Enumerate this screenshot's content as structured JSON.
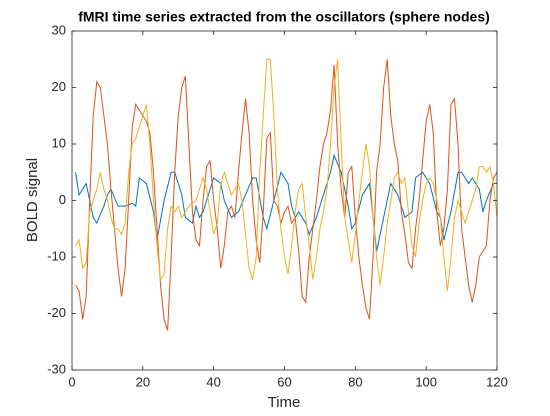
{
  "chart_data": {
    "type": "line",
    "title": "fMRI time series extracted from the oscillators (sphere nodes)",
    "xlabel": "Time",
    "ylabel": "BOLD signal",
    "xlim": [
      0,
      120
    ],
    "xticks": [
      0,
      20,
      40,
      60,
      80,
      100,
      120
    ],
    "ylim": [
      -30,
      30
    ],
    "yticks": [
      -30,
      -20,
      -10,
      0,
      10,
      20,
      30
    ],
    "grid": false,
    "series": [
      {
        "color": "#0072bd",
        "x": [
          1,
          2,
          4,
          6,
          7,
          9,
          10,
          11,
          13,
          15,
          17,
          18,
          19,
          21,
          23,
          24,
          26,
          28,
          29,
          31,
          32,
          34,
          35,
          36,
          37,
          38,
          40,
          42,
          43,
          45,
          47,
          49,
          51,
          52,
          54,
          55,
          57,
          59,
          61,
          62,
          63,
          64,
          66,
          67,
          69,
          71,
          73,
          74,
          76,
          78,
          79,
          80,
          82,
          84,
          85,
          86,
          88,
          90,
          92,
          94,
          96,
          97,
          99,
          101,
          103,
          104,
          105,
          107,
          109,
          110,
          112,
          113,
          115,
          116,
          117,
          119,
          120
        ],
        "values": [
          5,
          1,
          3,
          -3,
          -4,
          -1,
          1,
          2,
          -1,
          -1,
          -0.5,
          -1,
          4,
          3,
          -2,
          -7,
          0,
          5,
          5,
          1,
          -3,
          -4,
          -1,
          -3,
          -2,
          0,
          4,
          3,
          0,
          -3,
          -2,
          1,
          4,
          4,
          -3,
          -5,
          0,
          5,
          3,
          -1,
          -3,
          -2,
          -4,
          -6,
          -3,
          1,
          5,
          8,
          5,
          -1,
          -5,
          -4,
          1,
          3,
          -3,
          -9,
          -3,
          3,
          1,
          -3,
          -2,
          4,
          5,
          3,
          -2,
          -3,
          -7,
          -2,
          5,
          5,
          3,
          4,
          2,
          -2,
          0,
          3,
          3
        ]
      },
      {
        "color": "#d95319",
        "x": [
          1,
          2,
          3,
          4,
          5,
          6,
          7,
          8,
          9,
          10,
          11,
          12,
          13,
          14,
          15,
          16,
          17,
          18,
          19,
          20,
          21,
          22,
          23,
          24,
          25,
          26,
          27,
          28,
          29,
          30,
          31,
          32,
          33,
          34,
          35,
          36,
          37,
          38,
          39,
          40,
          41,
          42,
          43,
          44,
          45,
          46,
          47,
          48,
          49,
          50,
          51,
          52,
          53,
          54,
          55,
          56,
          57,
          58,
          59,
          60,
          61,
          62,
          63,
          64,
          65,
          66,
          67,
          68,
          69,
          70,
          71,
          72,
          73,
          74,
          75,
          76,
          77,
          78,
          79,
          80,
          81,
          82,
          83,
          84,
          85,
          86,
          87,
          88,
          89,
          90,
          91,
          92,
          93,
          94,
          95,
          96,
          97,
          98,
          99,
          100,
          101,
          102,
          103,
          104,
          105,
          106,
          107,
          108,
          109,
          110,
          111,
          112,
          113,
          114,
          115,
          116,
          117,
          118,
          119,
          120
        ],
        "values": [
          -15,
          -16,
          -21,
          -17,
          0,
          15,
          21,
          20,
          15,
          10,
          2,
          -5,
          -12,
          -17,
          -12,
          0,
          13,
          17,
          16,
          15,
          14,
          12,
          5,
          -5,
          -15,
          -21,
          -23,
          -10,
          5,
          15,
          20,
          22,
          10,
          -2,
          -7,
          -8,
          0,
          6,
          7,
          0,
          -5,
          -12,
          -8,
          -2,
          -1,
          -3,
          5,
          12,
          18,
          12,
          0,
          -7,
          -11,
          -2,
          11,
          12,
          0,
          -1,
          -4,
          -2,
          -1,
          -4,
          -3,
          -9,
          -17,
          -18,
          -10,
          -5,
          0,
          6,
          10,
          12,
          16,
          24,
          10,
          2,
          -3,
          5,
          6,
          -3,
          -10,
          -15,
          -19,
          -21,
          -10,
          5,
          10,
          20,
          25,
          15,
          10,
          7,
          -2,
          -6,
          -11,
          -12,
          -5,
          0,
          7,
          14,
          17,
          12,
          -2,
          -8,
          -5,
          2,
          17,
          18,
          10,
          -5,
          -10,
          -15,
          -18,
          -15,
          -10,
          -9,
          -8,
          0,
          4,
          5
        ]
      },
      {
        "color": "#edb120",
        "x": [
          1,
          2,
          3,
          4,
          5,
          6,
          7,
          8,
          9,
          10,
          11,
          12,
          13,
          14,
          15,
          16,
          17,
          18,
          19,
          20,
          21,
          22,
          23,
          24,
          25,
          26,
          27,
          28,
          29,
          30,
          31,
          32,
          33,
          34,
          35,
          36,
          37,
          38,
          39,
          40,
          41,
          42,
          43,
          44,
          45,
          46,
          47,
          48,
          49,
          50,
          51,
          52,
          53,
          54,
          55,
          56,
          57,
          58,
          59,
          60,
          61,
          62,
          63,
          64,
          65,
          66,
          67,
          68,
          69,
          70,
          71,
          72,
          73,
          74,
          75,
          76,
          77,
          78,
          79,
          80,
          81,
          82,
          83,
          84,
          85,
          86,
          87,
          88,
          89,
          90,
          91,
          92,
          93,
          94,
          95,
          96,
          97,
          98,
          99,
          100,
          101,
          102,
          103,
          104,
          105,
          106,
          107,
          108,
          109,
          110,
          111,
          112,
          113,
          114,
          115,
          116,
          117,
          118,
          119,
          120
        ],
        "values": [
          -8,
          -7,
          -12,
          -11,
          -2,
          0,
          2,
          5,
          2,
          0,
          -3,
          -5,
          -5,
          -6,
          -4,
          5,
          10,
          11,
          13,
          15,
          17,
          10,
          0,
          -8,
          -14,
          -13,
          -5,
          -1,
          -2,
          -1,
          -3,
          -2,
          -1,
          -0.5,
          0,
          2,
          4,
          2,
          -2,
          -6,
          -4,
          3,
          5,
          3,
          1,
          2,
          3,
          0,
          -6,
          -12,
          -14,
          -10,
          5,
          15,
          25,
          25,
          15,
          2,
          -5,
          -10,
          -13,
          -8,
          -2,
          2,
          3,
          -3,
          -8,
          -14,
          -10,
          -5,
          -2,
          2,
          10,
          20,
          25,
          10,
          -3,
          -7,
          -11,
          -6,
          0,
          5,
          10,
          6,
          -3,
          -10,
          -15,
          -10,
          -4,
          0,
          4,
          5,
          3,
          4,
          -2,
          -8,
          -10,
          -4,
          0,
          3,
          4,
          3,
          0,
          -3,
          -10,
          -16,
          -10,
          -3,
          0,
          -2,
          -4,
          -2,
          0,
          2,
          6,
          6,
          5,
          6,
          3,
          -3
        ]
      }
    ]
  }
}
